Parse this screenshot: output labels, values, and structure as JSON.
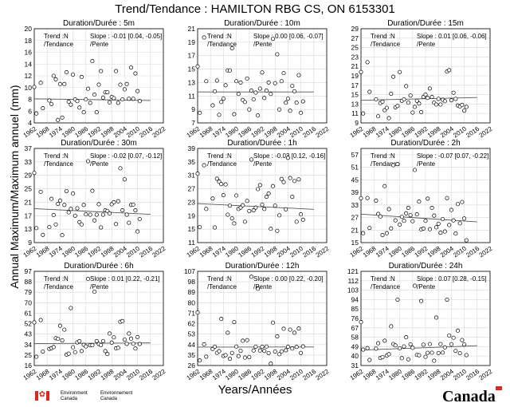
{
  "title": "Trend/Tendance : HAMILTON RBG CS, ON  6153301",
  "ylabel": "Annual Maximum/Maximum annuel (mm)",
  "xlabel": "Years/Années",
  "footer": {
    "env_en": "Environment",
    "canada_en": "Canada",
    "env_fr": "Environnement",
    "canada_fr": "Canada",
    "wordmark": "Canada",
    "flag_color": "#d52b1e"
  },
  "chart_data": [
    {
      "type": "scatter",
      "title": "Duration/Durée : 5m",
      "trend_label": "Trend :N\n/Tendance",
      "slope_label": "Slope : -0.01 [0.04, -0.05]\n/Pente",
      "xlim": [
        1962,
        2022
      ],
      "xticks": [
        1962,
        1968,
        1974,
        1980,
        1986,
        1992,
        1998,
        2004,
        2010,
        2016,
        2022
      ],
      "ylim": [
        4,
        20
      ],
      "yticks": [
        4,
        6,
        8,
        10,
        12,
        14,
        16,
        18,
        20
      ],
      "x": [
        1962,
        1963,
        1965,
        1966,
        1969,
        1970,
        1971,
        1972,
        1973,
        1974,
        1975,
        1976,
        1977,
        1978,
        1979,
        1980,
        1981,
        1982,
        1983,
        1984,
        1985,
        1986,
        1987,
        1988,
        1989,
        1990,
        1991,
        1992,
        1993,
        1994,
        1995,
        1996,
        1997,
        1998,
        1999,
        2000,
        2001,
        2002,
        2003,
        2004,
        2005,
        2006,
        2007,
        2008,
        2009,
        2010,
        2011
      ],
      "y": [
        10.1,
        5.6,
        10.8,
        6.5,
        7.8,
        7.2,
        12.0,
        11.4,
        4.5,
        10.6,
        4.9,
        10.6,
        12.6,
        7.6,
        7.1,
        12.2,
        8.0,
        7.7,
        6.6,
        11.8,
        5.8,
        8.0,
        9.8,
        7.4,
        14.5,
        8.8,
        5.8,
        10.5,
        12.8,
        8.3,
        9.2,
        9.2,
        7.5,
        8.4,
        8.2,
        12.8,
        7.4,
        10.5,
        8.0,
        9.7,
        10.6,
        8.1,
        13.4,
        8.1,
        12.4,
        9.4,
        7.7
      ],
      "trend": [
        8.1,
        7.8
      ]
    },
    {
      "type": "scatter",
      "title": "Duration/Durée : 10m",
      "trend_label": "Trend :N\n/Tendance",
      "slope_label": "Slope : 0.00 [0.06, -0.07]\n/Pente",
      "xlim": [
        1962,
        2022
      ],
      "xticks": [
        1962,
        1968,
        1974,
        1980,
        1986,
        1992,
        1998,
        2004,
        2010,
        2016,
        2022
      ],
      "ylim": [
        7,
        21
      ],
      "yticks": [
        7,
        9,
        11,
        13,
        15,
        17,
        19,
        21
      ],
      "x": [
        1962,
        1963,
        1965,
        1966,
        1969,
        1970,
        1971,
        1972,
        1973,
        1974,
        1975,
        1976,
        1977,
        1978,
        1979,
        1980,
        1981,
        1982,
        1983,
        1984,
        1985,
        1986,
        1987,
        1988,
        1989,
        1990,
        1991,
        1992,
        1993,
        1994,
        1995,
        1996,
        1997,
        1998,
        1999,
        2000,
        2001,
        2002,
        2003,
        2004,
        2005,
        2006,
        2007,
        2008,
        2009,
        2010,
        2011
      ],
      "y": [
        15.4,
        8.5,
        19.7,
        13.2,
        9.6,
        11.7,
        13.3,
        8.2,
        10.1,
        10.6,
        12.6,
        14.8,
        14.8,
        18.1,
        8.3,
        13.2,
        11.3,
        13.0,
        10.4,
        10.1,
        13.6,
        9.0,
        11.8,
        10.5,
        11.5,
        8.1,
        12.1,
        14.5,
        10.7,
        11.8,
        13.0,
        11.3,
        19.5,
        12.9,
        17.2,
        9.0,
        13.2,
        14.4,
        10.0,
        10.6,
        8.8,
        12.5,
        11.7,
        10.0,
        14.1,
        8.5,
        10.2
      ],
      "trend": [
        11.6,
        11.6
      ]
    },
    {
      "type": "scatter",
      "title": "Duration/Durée : 15m",
      "trend_label": "Trend :N\n/Tendance",
      "slope_label": "Slope : 0.01 [0.06, -0.06]\n/Pente",
      "xlim": [
        1962,
        2022
      ],
      "xticks": [
        1962,
        1968,
        1974,
        1980,
        1986,
        1992,
        1998,
        2004,
        2010,
        2016,
        2022
      ],
      "ylim": [
        9,
        29
      ],
      "yticks": [
        9,
        11,
        13,
        15,
        17,
        19,
        21,
        23,
        25,
        27,
        29
      ],
      "x": [
        1962,
        1963,
        1965,
        1966,
        1969,
        1970,
        1971,
        1972,
        1973,
        1974,
        1975,
        1976,
        1977,
        1978,
        1979,
        1980,
        1981,
        1982,
        1983,
        1984,
        1985,
        1986,
        1987,
        1988,
        1989,
        1990,
        1991,
        1992,
        1993,
        1994,
        1995,
        1996,
        1997,
        1998,
        1999,
        2000,
        2001,
        2002,
        2003,
        2004,
        2005,
        2006,
        2007,
        2008,
        2009,
        2010,
        2011
      ],
      "y": [
        19.8,
        11.0,
        21.9,
        15.6,
        14.0,
        10.4,
        13.2,
        13.5,
        11.7,
        12.2,
        10.0,
        15.2,
        18.8,
        12.3,
        12.6,
        19.8,
        13.7,
        14.0,
        16.8,
        13.3,
        14.8,
        11.2,
        12.4,
        13.7,
        13.1,
        11.3,
        14.5,
        15.0,
        14.3,
        16.3,
        14.5,
        13.3,
        12.9,
        14.1,
        12.9,
        13.9,
        13.6,
        19.9,
        20.2,
        13.8,
        15.4,
        14.1,
        12.7,
        12.5,
        12.8,
        11.6,
        12.4
      ],
      "trend": [
        13.8,
        14.4
      ]
    },
    {
      "type": "scatter",
      "title": "Duration/Durée : 30m",
      "trend_label": "Trend :N\n/Tendance",
      "slope_label": "Slope : -0.02 [0.07, -0.12]\n/Pente",
      "xlim": [
        1962,
        2022
      ],
      "xticks": [
        1962,
        1968,
        1974,
        1980,
        1986,
        1992,
        1998,
        2004,
        2010,
        2016,
        2022
      ],
      "ylim": [
        9,
        37
      ],
      "yticks": [
        9,
        13,
        17,
        21,
        25,
        29,
        33,
        37
      ],
      "x": [
        1962,
        1963,
        1965,
        1966,
        1969,
        1970,
        1971,
        1972,
        1973,
        1974,
        1975,
        1976,
        1977,
        1978,
        1979,
        1980,
        1981,
        1982,
        1983,
        1984,
        1985,
        1986,
        1987,
        1988,
        1989,
        1990,
        1991,
        1992,
        1993,
        1994,
        1995,
        1996,
        1997,
        1998,
        1999,
        2000,
        2001,
        2002,
        2003,
        2004,
        2005,
        2006,
        2007,
        2008,
        2009,
        2010,
        2011
      ],
      "y": [
        29.7,
        13.3,
        24.1,
        11.3,
        13.6,
        22.0,
        17.2,
        14.4,
        20.5,
        21.5,
        11.2,
        20.2,
        24.3,
        18.0,
        19.0,
        23.6,
        17.0,
        19.2,
        15.1,
        14.4,
        20.2,
        17.4,
        33.2,
        17.3,
        24.4,
        15.6,
        17.3,
        20.4,
        13.5,
        17.3,
        18.6,
        18.4,
        17.7,
        20.4,
        21.0,
        14.5,
        21.3,
        31.1,
        18.6,
        27.8,
        17.3,
        14.9,
        20.2,
        20.3,
        18.6,
        12.3,
        16.0
      ],
      "trend": [
        19.1,
        17.4
      ]
    },
    {
      "type": "scatter",
      "title": "Duration/Durée : 1h",
      "trend_label": "Trend :N\n/Tendance",
      "slope_label": "Slope : -0.03 [0.12, -0.16]\n/Pente",
      "xlim": [
        1962,
        2022
      ],
      "xticks": [
        1962,
        1968,
        1974,
        1980,
        1986,
        1992,
        1998,
        2004,
        2010,
        2016,
        2022
      ],
      "ylim": [
        11,
        39
      ],
      "yticks": [
        11,
        15,
        19,
        23,
        27,
        31,
        35,
        39
      ],
      "x": [
        1962,
        1963,
        1965,
        1966,
        1969,
        1970,
        1971,
        1972,
        1973,
        1974,
        1975,
        1976,
        1977,
        1978,
        1979,
        1980,
        1981,
        1982,
        1983,
        1984,
        1985,
        1986,
        1987,
        1988,
        1989,
        1990,
        1991,
        1992,
        1993,
        1994,
        1995,
        1996,
        1997,
        1998,
        1999,
        2000,
        2001,
        2002,
        2003,
        2004,
        2005,
        2006,
        2007,
        2008,
        2009,
        2010,
        2011
      ],
      "y": [
        31.5,
        15.6,
        34.0,
        21.0,
        24.1,
        15.5,
        30.0,
        29.1,
        28.4,
        25.1,
        28.3,
        19.3,
        22.0,
        18.2,
        16.7,
        25.0,
        21.0,
        21.4,
        22.1,
        17.2,
        23.4,
        20.4,
        35.7,
        20.6,
        21.4,
        26.9,
        28.1,
        22.3,
        21.0,
        24.6,
        25.6,
        15.1,
        27.8,
        22.0,
        14.5,
        19.1,
        29.9,
        29.0,
        20.9,
        36.2,
        30.2,
        24.6,
        29.3,
        17.2,
        29.8,
        19.4,
        17.8
      ],
      "trend": [
        22.6,
        20.9
      ]
    },
    {
      "type": "scatter",
      "title": "Duration/Durée : 2h",
      "trend_label": "Trend :N\n/Tendance",
      "slope_label": "Slope : -0.07 [0.07, -0.22]\n/Pente",
      "xlim": [
        1962,
        2022
      ],
      "xticks": [
        1962,
        1968,
        1974,
        1980,
        1986,
        1992,
        1998,
        2004,
        2010,
        2016,
        2022
      ],
      "ylim": [
        15,
        60
      ],
      "yticks": [
        15,
        21,
        27,
        33,
        39,
        45,
        51,
        57
      ],
      "x": [
        1962,
        1963,
        1965,
        1966,
        1969,
        1970,
        1971,
        1972,
        1973,
        1974,
        1975,
        1976,
        1977,
        1978,
        1979,
        1980,
        1981,
        1982,
        1983,
        1984,
        1985,
        1986,
        1987,
        1988,
        1989,
        1990,
        1991,
        1992,
        1993,
        1994,
        1995,
        1996,
        1997,
        1998,
        1999,
        2000,
        2001,
        2002,
        2003,
        2004,
        2005,
        2006,
        2007,
        2008,
        2009,
        2010,
        2011
      ],
      "y": [
        36.2,
        19.5,
        36.3,
        22.0,
        35.1,
        28.7,
        27.5,
        18.6,
        42.0,
        19.5,
        31.0,
        21.8,
        52.0,
        25.6,
        52.5,
        23.6,
        27.3,
        25.4,
        29.0,
        31.6,
        28.1,
        25.2,
        49.7,
        28.5,
        34.6,
        21.3,
        21.7,
        25.4,
        36.0,
        21.4,
        31.6,
        27.9,
        22.3,
        24.0,
        19.7,
        26.2,
        20.3,
        36.3,
        23.4,
        30.6,
        25.6,
        19.3,
        33.4,
        24.2,
        34.4,
        26.5,
        16.1
      ],
      "trend": [
        28.6,
        24.9
      ]
    },
    {
      "type": "scatter",
      "title": "Duration/Durée : 6h",
      "trend_label": "Trend :N\n/Tendance",
      "slope_label": "Slope : 0.01 [0.22, -0.21]\n/Pente",
      "xlim": [
        1962,
        2022
      ],
      "xticks": [
        1962,
        1968,
        1974,
        1980,
        1986,
        1992,
        1998,
        2004,
        2010,
        2016,
        2022
      ],
      "ylim": [
        16,
        97
      ],
      "yticks": [
        16,
        25,
        34,
        43,
        52,
        61,
        70,
        79,
        88,
        97
      ],
      "x": [
        1962,
        1963,
        1965,
        1966,
        1969,
        1970,
        1971,
        1972,
        1973,
        1974,
        1975,
        1976,
        1977,
        1978,
        1979,
        1980,
        1981,
        1982,
        1983,
        1984,
        1985,
        1986,
        1987,
        1988,
        1989,
        1990,
        1991,
        1992,
        1993,
        1994,
        1995,
        1996,
        1997,
        1998,
        1999,
        2000,
        2001,
        2002,
        2003,
        2004,
        2005,
        2006,
        2007,
        2008,
        2009,
        2010,
        2011
      ],
      "y": [
        53.1,
        23.5,
        55.1,
        28.0,
        30.3,
        30.9,
        31.8,
        39.5,
        39.0,
        50.2,
        37.6,
        46.8,
        25.3,
        26.2,
        65.4,
        31.7,
        27.5,
        35.9,
        36.9,
        28.4,
        33.8,
        32.4,
        90.5,
        33.4,
        33.5,
        79.5,
        37.0,
        34.5,
        33.5,
        37.0,
        28.4,
        25.9,
        43.5,
        35.7,
        40.2,
        30.8,
        31.2,
        53.6,
        54.2,
        38.3,
        34.6,
        43.5,
        39.1,
        34.7,
        30.6,
        40.4,
        34.5
      ],
      "trend": [
        34.8,
        35.4
      ]
    },
    {
      "type": "scatter",
      "title": "Duration/Durée : 12h",
      "trend_label": "Trend :N\n/Tendance",
      "slope_label": "Slope : 0.00 [0.22, -0.20]\n/Pente",
      "xlim": [
        1962,
        2022
      ],
      "xticks": [
        1962,
        1968,
        1974,
        1980,
        1986,
        1992,
        1998,
        2004,
        2010,
        2016,
        2022
      ],
      "ylim": [
        26,
        107
      ],
      "yticks": [
        26,
        35,
        44,
        53,
        62,
        71,
        80,
        89,
        98,
        107
      ],
      "x": [
        1962,
        1963,
        1965,
        1966,
        1969,
        1970,
        1971,
        1972,
        1973,
        1974,
        1975,
        1976,
        1977,
        1978,
        1979,
        1980,
        1981,
        1982,
        1983,
        1984,
        1985,
        1986,
        1987,
        1988,
        1989,
        1990,
        1991,
        1992,
        1993,
        1994,
        1995,
        1996,
        1997,
        1998,
        1999,
        2000,
        2001,
        2002,
        2003,
        2004,
        2005,
        2006,
        2007,
        2008,
        2009,
        2010,
        2011
      ],
      "y": [
        71.6,
        30.3,
        44.2,
        33.6,
        40.2,
        42.2,
        36.9,
        38.3,
        66.1,
        34.2,
        34.9,
        54.2,
        31.8,
        36.8,
        63.3,
        42.3,
        34.1,
        38.6,
        47.3,
        32.8,
        47.8,
        33.2,
        102.3,
        38.9,
        42.2,
        92.0,
        38.9,
        42.1,
        38.5,
        42.3,
        36.7,
        27.6,
        62.9,
        38.0,
        51.1,
        35.7,
        38.1,
        57.6,
        39.1,
        42.1,
        56.8,
        40.6,
        54.2,
        42.0,
        57.8,
        36.8,
        42.4
      ],
      "trend": [
        41.8,
        41.9
      ]
    },
    {
      "type": "scatter",
      "title": "Duration/Durée : 24h",
      "trend_label": "Trend :N\n/Tendance",
      "slope_label": "Slope : 0.07 [0.28, -0.15]\n/Pente",
      "xlim": [
        1962,
        2022
      ],
      "xticks": [
        1962,
        1968,
        1974,
        1980,
        1986,
        1992,
        1998,
        2004,
        2010,
        2016,
        2022
      ],
      "ylim": [
        31,
        121
      ],
      "yticks": [
        31,
        40,
        49,
        58,
        67,
        76,
        85,
        94,
        103,
        112,
        121
      ],
      "x": [
        1962,
        1963,
        1965,
        1966,
        1969,
        1970,
        1971,
        1972,
        1973,
        1974,
        1975,
        1976,
        1977,
        1978,
        1979,
        1980,
        1981,
        1982,
        1983,
        1984,
        1985,
        1986,
        1987,
        1988,
        1989,
        1990,
        1991,
        1992,
        1993,
        1994,
        1995,
        1996,
        1997,
        1998,
        1999,
        2000,
        2001,
        2002,
        2003,
        2004,
        2005,
        2006,
        2007,
        2008,
        2009,
        2010,
        2011
      ],
      "y": [
        72.5,
        46.2,
        47.6,
        36.3,
        47.1,
        52.3,
        38.1,
        39.0,
        54.7,
        40.5,
        41.8,
        68.4,
        51.6,
        50.2,
        93.9,
        47.4,
        38.0,
        49.2,
        58.0,
        36.9,
        51.2,
        47.9,
        107.2,
        41.1,
        40.8,
        92.6,
        50.9,
        39.3,
        43.1,
        51.5,
        43.2,
        35.5,
        76.8,
        42.9,
        51.5,
        43.3,
        48.3,
        93.9,
        59.6,
        51.4,
        57.5,
        45.0,
        64.3,
        42.8,
        55.3,
        51.1,
        40.9
      ],
      "trend": [
        45.7,
        49.9
      ]
    }
  ]
}
